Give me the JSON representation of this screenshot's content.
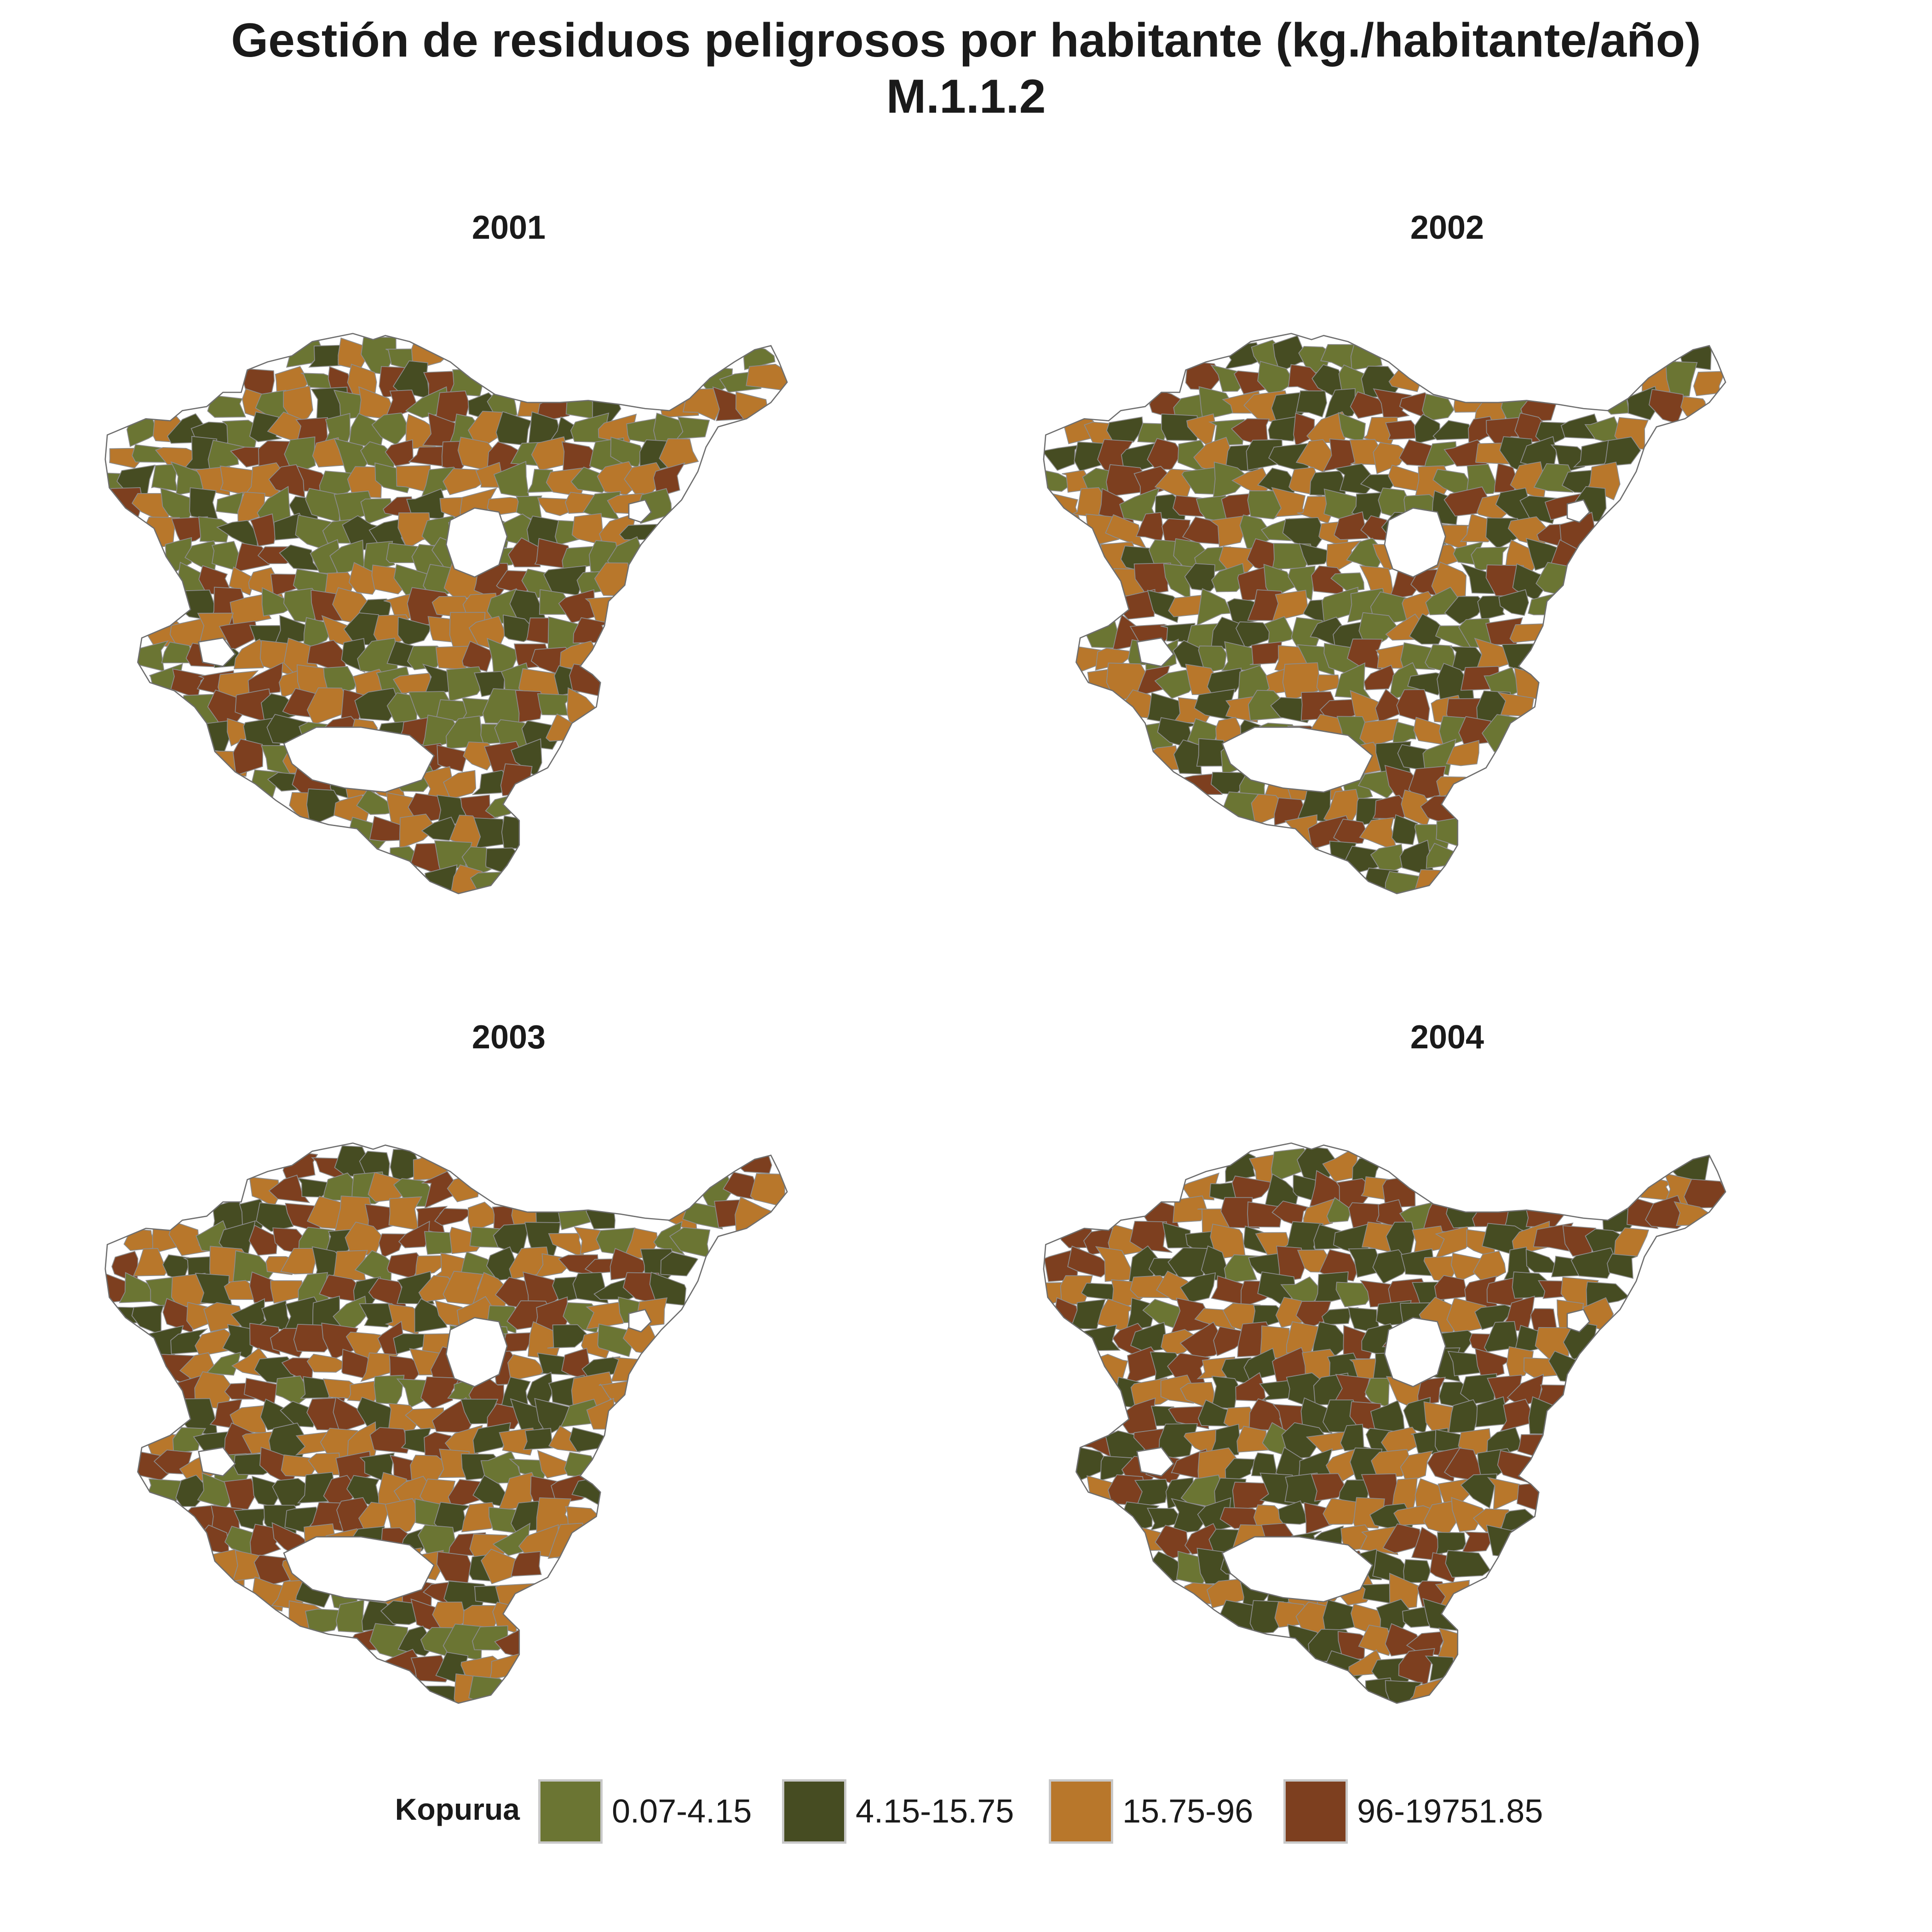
{
  "title": {
    "line1": "Gestión de residuos peligrosos por habitante (kg./habitante/año)",
    "line2": "M.1.1.2"
  },
  "panels": [
    {
      "year": "2001",
      "palette_weights": [
        0.34,
        0.16,
        0.27,
        0.23
      ]
    },
    {
      "year": "2002",
      "palette_weights": [
        0.26,
        0.22,
        0.28,
        0.24
      ]
    },
    {
      "year": "2003",
      "palette_weights": [
        0.16,
        0.28,
        0.3,
        0.26
      ]
    },
    {
      "year": "2004",
      "palette_weights": [
        0.02,
        0.36,
        0.3,
        0.32
      ]
    }
  ],
  "legend": {
    "title": "Kopurua",
    "classes": [
      {
        "label": "0.07-4.15",
        "color": "#6b7533"
      },
      {
        "label": "4.15-15.75",
        "color": "#464c22"
      },
      {
        "label": "15.75-96",
        "color": "#b8772b"
      },
      {
        "label": "96-19751.85",
        "color": "#7d3f1f"
      }
    ]
  },
  "boundary_color": "#8c8c8c"
}
